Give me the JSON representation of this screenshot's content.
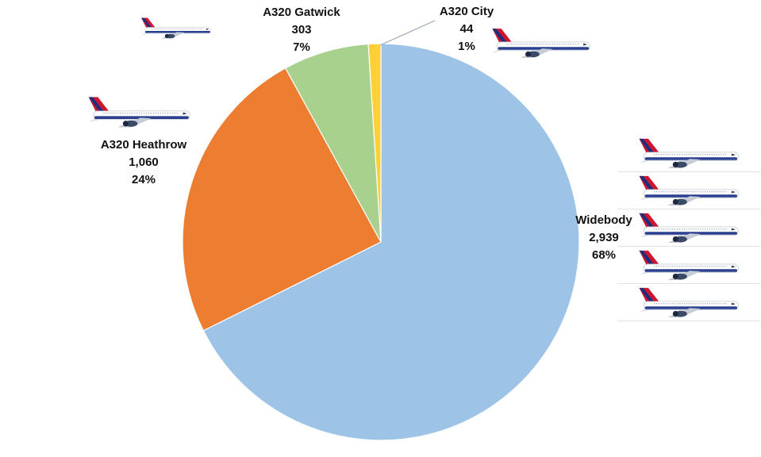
{
  "page": {
    "background": "#ffffff"
  },
  "chart_data": {
    "type": "pie",
    "title": "",
    "categories": [
      "Widebody",
      "A320 Heathrow",
      "A320 Gatwick",
      "A320 City"
    ],
    "values": [
      2939,
      1060,
      303,
      44
    ],
    "slices": [
      {
        "label": "Widebody",
        "value": 2939,
        "value_text": "2,939",
        "percent": "68%",
        "color": "#9DC3E6"
      },
      {
        "label": "A320 Heathrow",
        "value": 1060,
        "value_text": "1,060",
        "percent": "24%",
        "color": "#ED7D31"
      },
      {
        "label": "A320 Gatwick",
        "value": 303,
        "value_text": "303",
        "percent": "7%",
        "color": "#A9D18E"
      },
      {
        "label": "A320 City",
        "value": 44,
        "value_text": "44",
        "percent": "1%",
        "color": "#FFD034"
      }
    ],
    "start_angle_deg": 0,
    "direction": "clockwise",
    "legend": "none",
    "labels_position": "outside",
    "label_format": "name, value, percent",
    "leader_line_color": "#9AA7B5"
  },
  "icons": {
    "airplane": "british-airways-aircraft-side-profile",
    "narrowbody_plane_count": 3,
    "widebody_stack_count": 5
  }
}
